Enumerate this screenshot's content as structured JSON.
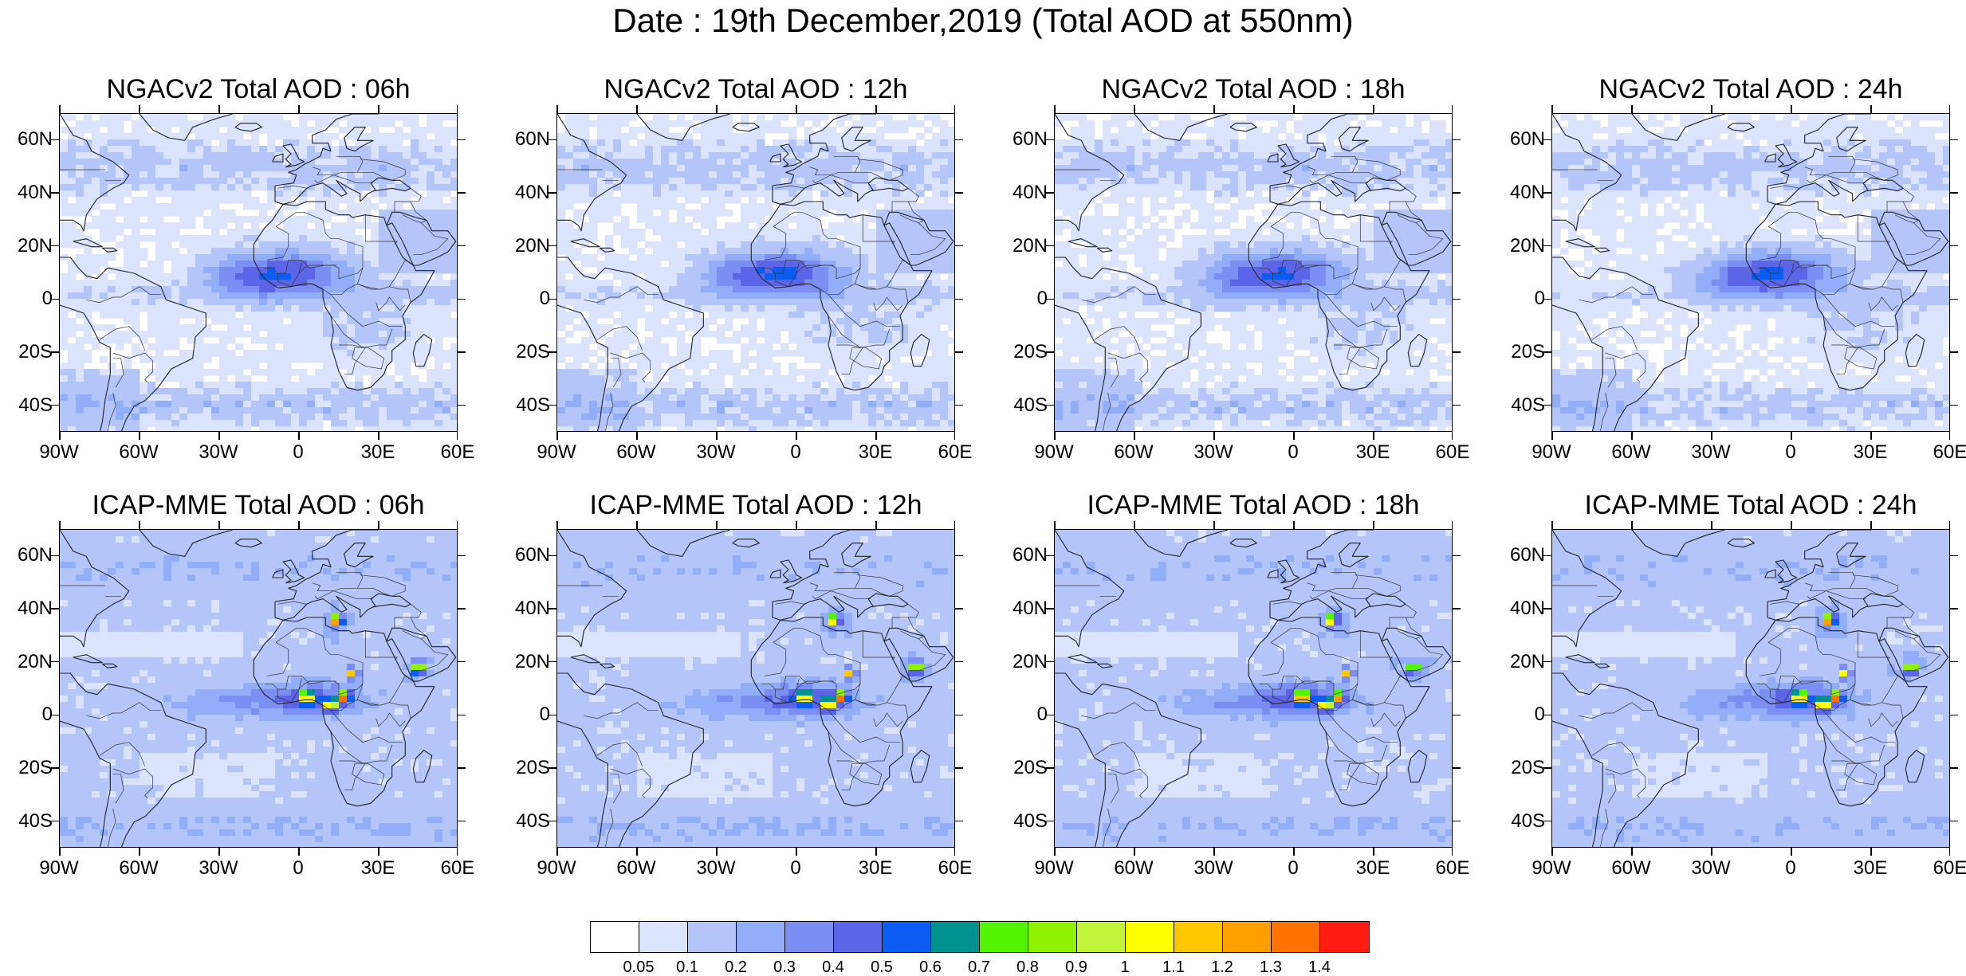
{
  "title": "Date : 19th December,2019 (Total AOD at 550nm)",
  "panels": [
    {
      "title": "NGACv2 Total AOD : 06h",
      "model": "ngac",
      "seed": 11
    },
    {
      "title": "NGACv2 Total AOD : 12h",
      "model": "ngac",
      "seed": 12
    },
    {
      "title": "NGACv2 Total AOD : 18h",
      "model": "ngac",
      "seed": 13
    },
    {
      "title": "NGACv2 Total AOD : 24h",
      "model": "ngac",
      "seed": 14
    },
    {
      "title": "ICAP-MME Total AOD : 06h",
      "model": "icap",
      "seed": 21
    },
    {
      "title": "ICAP-MME Total AOD : 12h",
      "model": "icap",
      "seed": 22
    },
    {
      "title": "ICAP-MME Total AOD : 18h",
      "model": "icap",
      "seed": 23
    },
    {
      "title": "ICAP-MME Total AOD : 24h",
      "model": "icap",
      "seed": 24
    }
  ],
  "axes": {
    "lat_ticks": [
      "60N",
      "40N",
      "20N",
      "0",
      "20S",
      "40S"
    ],
    "lon_ticks": [
      "90W",
      "60W",
      "30W",
      "0",
      "30E",
      "60E"
    ],
    "lat_range": [
      -50,
      70
    ],
    "lon_range": [
      -90,
      60
    ]
  },
  "colorbar": {
    "colors": [
      "#ffffff",
      "#dbe3fd",
      "#b4c5fa",
      "#93aef8",
      "#7b8ef3",
      "#5c64e8",
      "#0a5cf2",
      "#00928f",
      "#53f500",
      "#8ff200",
      "#c2f53a",
      "#ffff00",
      "#ffc800",
      "#ff9f00",
      "#ff7200",
      "#ff1c10"
    ],
    "labels": [
      "0.05",
      "0.1",
      "0.2",
      "0.3",
      "0.4",
      "0.5",
      "0.6",
      "0.7",
      "0.8",
      "0.9",
      "1",
      "1.1",
      "1.2",
      "1.3",
      "1.4"
    ]
  }
}
